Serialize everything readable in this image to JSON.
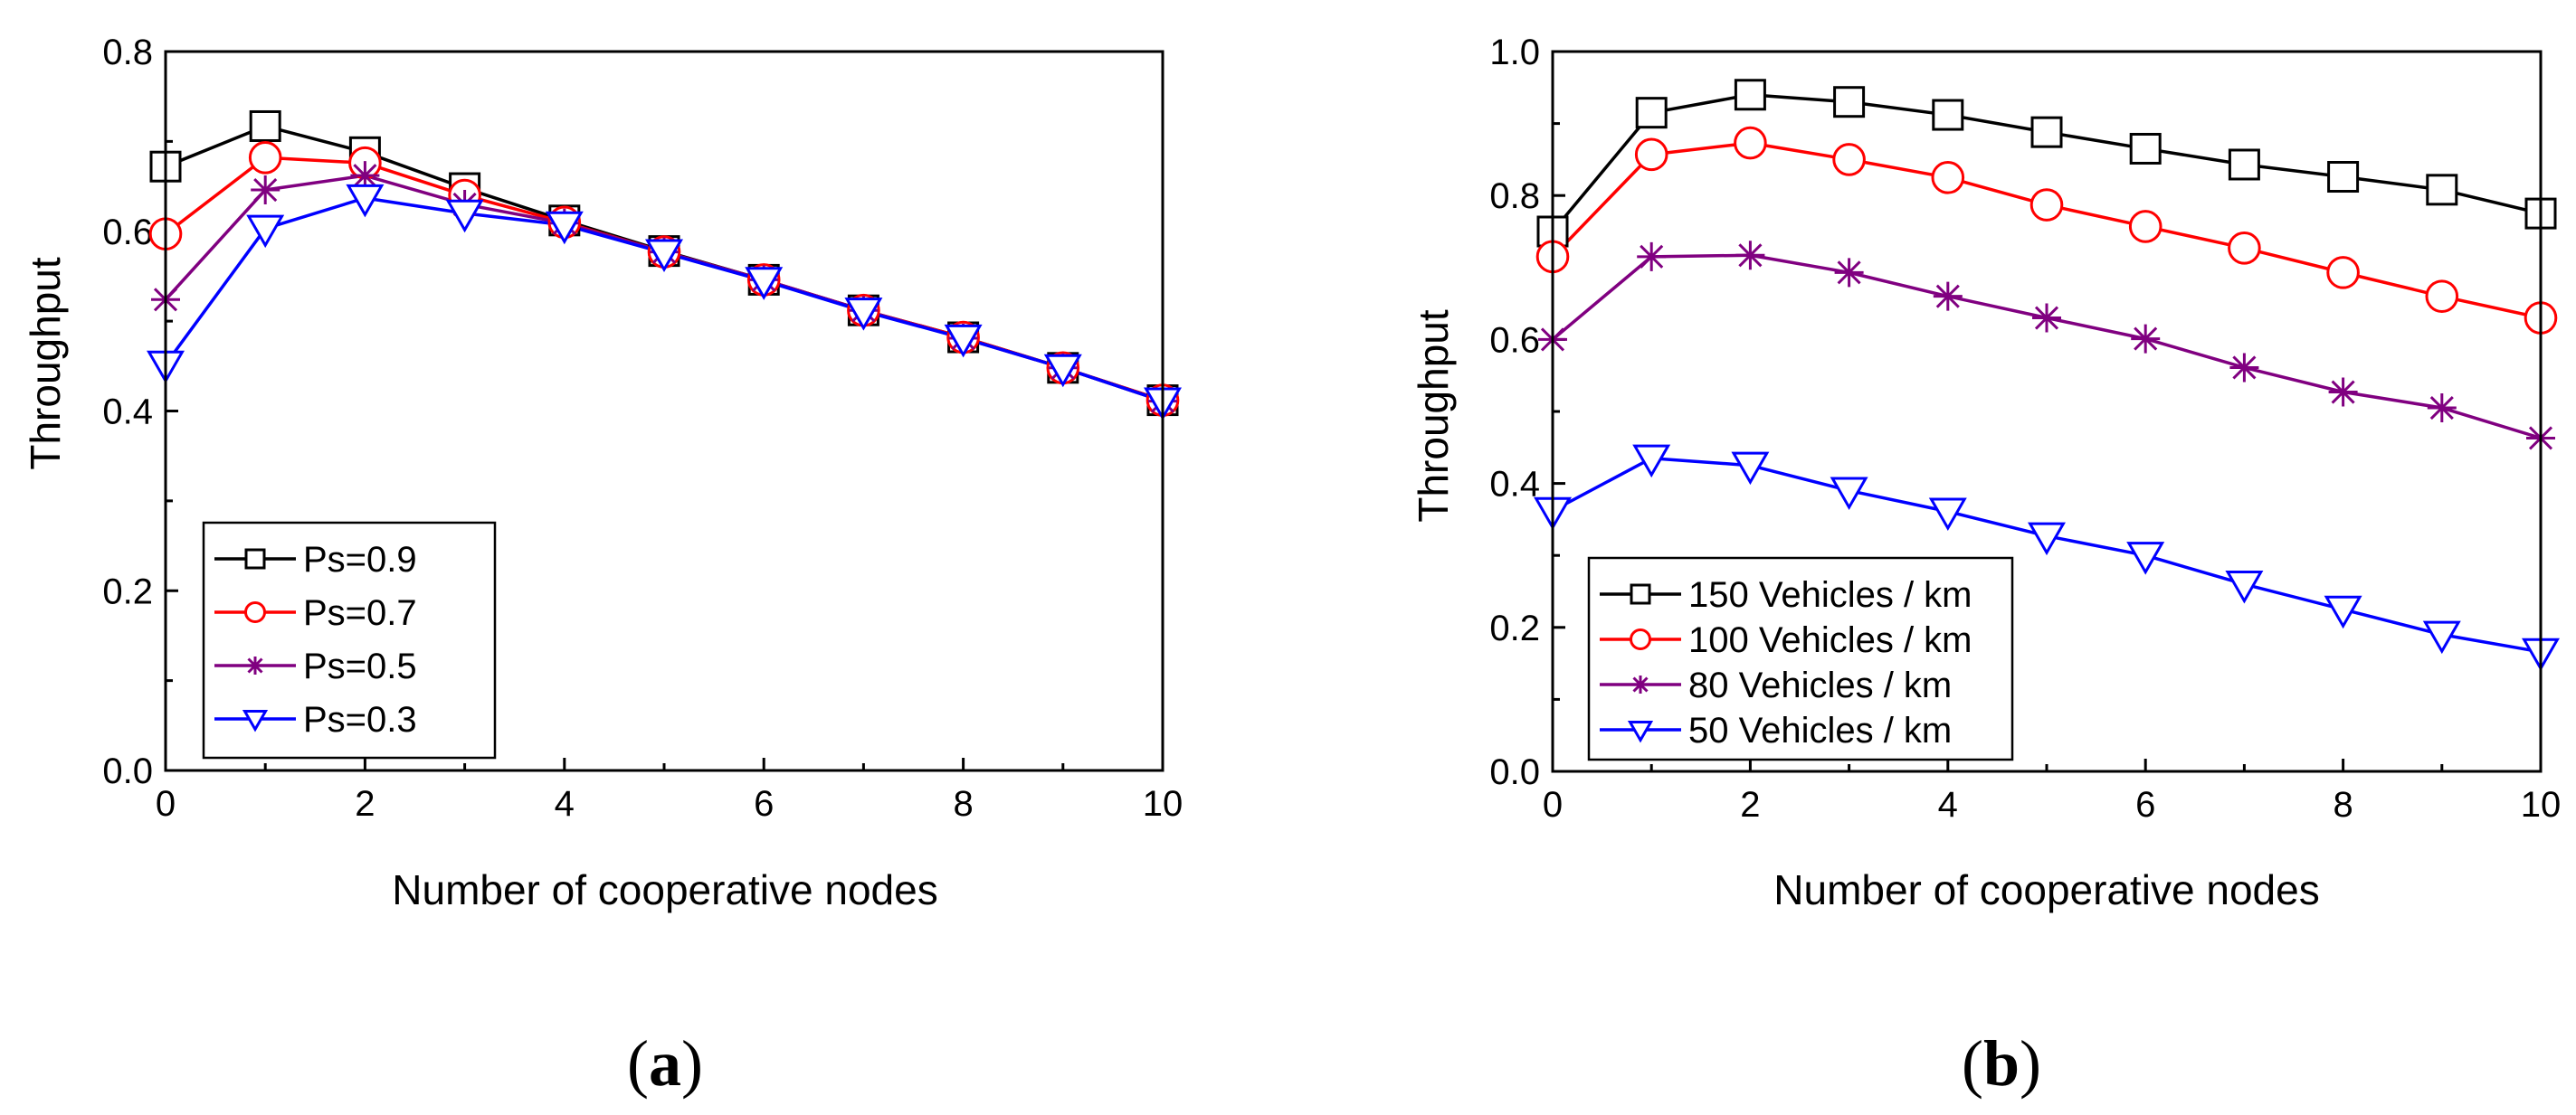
{
  "chart_data": [
    {
      "type": "line",
      "caption_label": "a",
      "xlabel": "Number of cooperative nodes",
      "ylabel": "Throughput",
      "xlim": [
        0,
        10
      ],
      "ylim": [
        0,
        0.8
      ],
      "xticks": [
        "0",
        "2",
        "4",
        "6",
        "8",
        "10"
      ],
      "yticks": [
        "0.0",
        "0.2",
        "0.4",
        "0.6",
        "0.8"
      ],
      "legend_position": "bottom-left",
      "x": [
        0,
        1,
        2,
        3,
        4,
        5,
        6,
        7,
        8,
        9,
        10
      ],
      "series": [
        {
          "name": "Ps=0.9",
          "color": "#000000",
          "marker": "square",
          "values": [
            0.672,
            0.717,
            0.688,
            0.648,
            0.612,
            0.578,
            0.546,
            0.512,
            0.482,
            0.448,
            0.412
          ]
        },
        {
          "name": "Ps=0.7",
          "color": "#ff0000",
          "marker": "circle",
          "values": [
            0.597,
            0.682,
            0.676,
            0.64,
            0.61,
            0.577,
            0.546,
            0.512,
            0.482,
            0.448,
            0.412
          ]
        },
        {
          "name": "Ps=0.5",
          "color": "#800080",
          "marker": "star",
          "values": [
            0.524,
            0.646,
            0.662,
            0.63,
            0.609,
            0.577,
            0.546,
            0.512,
            0.481,
            0.448,
            0.411
          ]
        },
        {
          "name": "Ps=0.3",
          "color": "#0000ff",
          "marker": "triangle-down",
          "values": [
            0.452,
            0.603,
            0.637,
            0.62,
            0.607,
            0.576,
            0.545,
            0.511,
            0.481,
            0.448,
            0.411
          ]
        }
      ]
    },
    {
      "type": "line",
      "caption_label": "b",
      "xlabel": "Number of cooperative nodes",
      "ylabel": "Throughput",
      "xlim": [
        0,
        10
      ],
      "ylim": [
        0,
        1.0
      ],
      "xticks": [
        "0",
        "2",
        "4",
        "6",
        "8",
        "10"
      ],
      "yticks": [
        "0.0",
        "0.2",
        "0.4",
        "0.6",
        "0.8",
        "1.0"
      ],
      "legend_position": "bottom-left",
      "x": [
        0,
        1,
        2,
        3,
        4,
        5,
        6,
        7,
        8,
        9,
        10
      ],
      "series": [
        {
          "name": "150 Vehicles / km",
          "color": "#000000",
          "marker": "square",
          "values": [
            0.75,
            0.915,
            0.94,
            0.93,
            0.912,
            0.888,
            0.865,
            0.843,
            0.826,
            0.808,
            0.775
          ]
        },
        {
          "name": "100 Vehicles / km",
          "color": "#ff0000",
          "marker": "circle",
          "values": [
            0.715,
            0.857,
            0.873,
            0.85,
            0.825,
            0.787,
            0.757,
            0.727,
            0.693,
            0.66,
            0.63
          ]
        },
        {
          "name": "80 Vehicles / km",
          "color": "#800080",
          "marker": "star",
          "values": [
            0.6,
            0.715,
            0.717,
            0.693,
            0.66,
            0.63,
            0.601,
            0.561,
            0.527,
            0.505,
            0.463
          ]
        },
        {
          "name": "50 Vehicles / km",
          "color": "#0000ff",
          "marker": "triangle-down",
          "values": [
            0.362,
            0.435,
            0.425,
            0.39,
            0.361,
            0.327,
            0.3,
            0.26,
            0.225,
            0.19,
            0.166
          ]
        }
      ]
    }
  ]
}
